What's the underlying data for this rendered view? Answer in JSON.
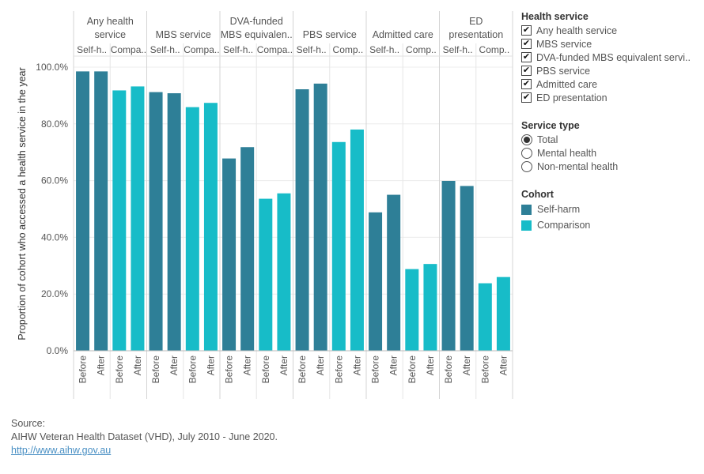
{
  "legend": {
    "health_service_title": "Health service",
    "health_services": [
      {
        "label": "Any health service",
        "checked": true
      },
      {
        "label": "MBS service",
        "checked": true
      },
      {
        "label": "DVA-funded MBS equivalent servi..",
        "checked": true
      },
      {
        "label": "PBS service",
        "checked": true
      },
      {
        "label": "Admitted care",
        "checked": true
      },
      {
        "label": "ED presentation",
        "checked": true
      }
    ],
    "service_type_title": "Service type",
    "service_types": [
      {
        "label": "Total",
        "selected": true
      },
      {
        "label": "Mental health",
        "selected": false
      },
      {
        "label": "Non-mental health",
        "selected": false
      }
    ],
    "cohort_title": "Cohort",
    "cohorts": [
      {
        "label": "Self-harm",
        "color": "#2e7f97"
      },
      {
        "label": "Comparison",
        "color": "#17bcc8"
      }
    ]
  },
  "source": {
    "label": "Source:",
    "text": "AIHW Veteran Health Dataset (VHD), July 2010 - June 2020.",
    "link": "http://www.aihw.gov.au"
  },
  "chart_data": {
    "type": "bar",
    "ylabel": "Proportion of cohort who accessed a health service in the year",
    "ylim": [
      0,
      100
    ],
    "yticks": [
      "0.0%",
      "20.0%",
      "40.0%",
      "60.0%",
      "80.0%",
      "100.0%"
    ],
    "grid": true,
    "cohort_short_labels": [
      "Self-h..",
      "Compa.."
    ],
    "periods": [
      "Before",
      "After"
    ],
    "groups": [
      {
        "header": [
          "Any health",
          "service"
        ],
        "short": [
          "Self-h..",
          "Compa.."
        ],
        "self_harm": {
          "Before": 98.5,
          "After": 98.5
        },
        "comparison": {
          "Before": 91.8,
          "After": 93.2
        }
      },
      {
        "header": [
          "MBS service"
        ],
        "short": [
          "Self-h..",
          "Compa.."
        ],
        "self_harm": {
          "Before": 91.2,
          "After": 90.8
        },
        "comparison": {
          "Before": 85.9,
          "After": 87.4
        }
      },
      {
        "header": [
          "DVA-funded",
          "MBS equivalen.."
        ],
        "short": [
          "Self-h..",
          "Compa.."
        ],
        "self_harm": {
          "Before": 67.8,
          "After": 71.8
        },
        "comparison": {
          "Before": 53.6,
          "After": 55.5
        }
      },
      {
        "header": [
          "PBS service"
        ],
        "short": [
          "Self-h..",
          "Comp.."
        ],
        "self_harm": {
          "Before": 92.2,
          "After": 94.2
        },
        "comparison": {
          "Before": 73.6,
          "After": 78.0
        }
      },
      {
        "header": [
          "Admitted care"
        ],
        "short": [
          "Self-h..",
          "Comp.."
        ],
        "self_harm": {
          "Before": 48.8,
          "After": 55.0
        },
        "comparison": {
          "Before": 28.8,
          "After": 30.6
        }
      },
      {
        "header": [
          "ED",
          "presentation"
        ],
        "short": [
          "Self-h..",
          "Comp.."
        ],
        "self_harm": {
          "Before": 59.9,
          "After": 58.1
        },
        "comparison": {
          "Before": 23.8,
          "After": 26.0
        }
      }
    ]
  }
}
